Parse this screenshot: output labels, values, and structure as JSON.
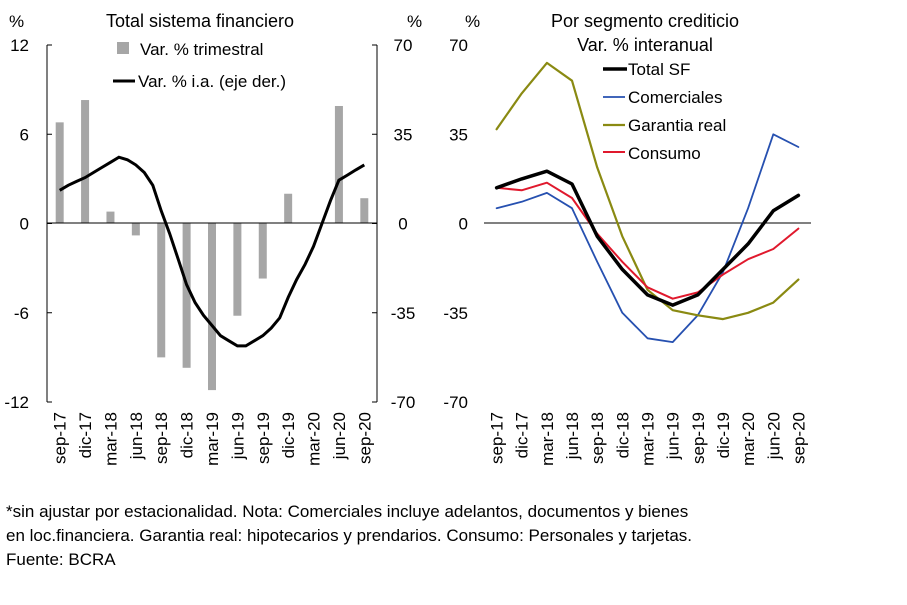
{
  "chart_data": [
    {
      "type": "bar+line",
      "title": "Total sistema financiero",
      "left_axis_unit": "%",
      "right_axis_unit": "%",
      "ylim_left": [
        -12,
        12
      ],
      "ylim_right": [
        -70,
        70
      ],
      "yticks_left": [
        "12",
        "6",
        "0",
        "-6",
        "-12"
      ],
      "yticks_right": [
        "70",
        "35",
        "0",
        "-35",
        "-70"
      ],
      "categories": [
        "sep-17",
        "oct-17",
        "nov-17",
        "dic-17",
        "ene-18",
        "feb-18",
        "mar-18",
        "abr-18",
        "may-18",
        "jun-18",
        "jul-18",
        "ago-18",
        "sep-18",
        "oct-18",
        "nov-18",
        "dic-18",
        "ene-19",
        "feb-19",
        "mar-19",
        "abr-19",
        "may-19",
        "jun-19",
        "jul-19",
        "ago-19",
        "sep-19",
        "oct-19",
        "nov-19",
        "dic-19",
        "ene-20",
        "feb-20",
        "mar-20",
        "abr-20",
        "may-20",
        "jun-20",
        "jul-20",
        "ago-20",
        "sep-20"
      ],
      "tick_labels": [
        "sep-17",
        "dic-17",
        "mar-18",
        "jun-18",
        "sep-18",
        "dic-18",
        "mar-19",
        "jun-19",
        "sep-19",
        "dic-19",
        "mar-20",
        "jun-20",
        "sep-20"
      ],
      "bars": {
        "name": "Var. % trimestral",
        "color": "#a6a6a6",
        "categories": [
          "sep-17",
          "dic-17",
          "mar-18",
          "jun-18",
          "sep-18",
          "dic-18",
          "mar-19",
          "jun-19",
          "sep-19",
          "dic-19",
          "mar-20",
          "jun-20",
          "sep-20"
        ],
        "values": [
          6.8,
          8.3,
          0.8,
          -0.8,
          -9.0,
          -9.7,
          -11.2,
          -6.2,
          -3.7,
          2.0,
          0.0,
          7.9,
          1.7
        ]
      },
      "line": {
        "name": "Var. % i.a. (eje der.)",
        "color": "#000000",
        "axis": "right",
        "values": [
          13,
          15,
          16.5,
          18,
          20,
          22,
          24,
          26,
          25,
          23,
          20,
          15,
          5,
          -4,
          -14,
          -24,
          -31,
          -36,
          -40,
          -44,
          -46,
          -48,
          -48,
          -46,
          -44,
          -41,
          -37,
          -29,
          -22,
          -16,
          -9,
          0,
          9,
          17,
          19,
          21,
          23
        ]
      },
      "legend": [
        "Var. % trimestral",
        "Var. % i.a. (eje der.)"
      ]
    },
    {
      "type": "line",
      "title": "Por segmento crediticio",
      "subtitle": "Var. % interanual",
      "unit": "%",
      "ylim": [
        -70,
        70
      ],
      "yticks": [
        "70",
        "35",
        "0",
        "-35",
        "-70"
      ],
      "tick_labels": [
        "sep-17",
        "dic-17",
        "mar-18",
        "jun-18",
        "sep-18",
        "dic-18",
        "mar-19",
        "jun-19",
        "sep-19",
        "dic-19",
        "mar-20",
        "jun-20",
        "sep-20"
      ],
      "series": [
        {
          "name": "Total SF",
          "color": "#000000",
          "width": 3.5,
          "values": [
            14,
            17.5,
            20.5,
            15.5,
            -5,
            -18,
            -28,
            -32,
            -28,
            -18,
            -8,
            5,
            11
          ]
        },
        {
          "name": "Comerciales",
          "color": "#2650b0",
          "width": 1.8,
          "values": [
            6,
            8.5,
            12,
            6,
            -15,
            -35,
            -45,
            -46.5,
            -36,
            -19,
            6,
            35,
            30
          ]
        },
        {
          "name": "Garantia real",
          "color": "#8a8a12",
          "width": 2.2,
          "values": [
            37,
            51,
            63,
            56,
            22,
            -5,
            -26,
            -34,
            -36,
            -37.5,
            -35,
            -31,
            -22
          ]
        },
        {
          "name": "Consumo",
          "color": "#e0192d",
          "width": 2.0,
          "values": [
            14,
            13,
            16,
            10,
            -4,
            -15,
            -25,
            -29.5,
            -27,
            -20,
            -14,
            -10,
            -2
          ]
        }
      ],
      "legend": [
        "Total SF",
        "Comerciales",
        "Garantia real",
        "Consumo"
      ]
    }
  ],
  "notes": [
    "*sin ajustar por estacionalidad. Nota: Comerciales incluye adelantos, documentos y bienes",
    "en loc.financiera. Garantia real: hipotecarios y prendarios. Consumo: Personales y tarjetas.",
    "Fuente: BCRA"
  ]
}
